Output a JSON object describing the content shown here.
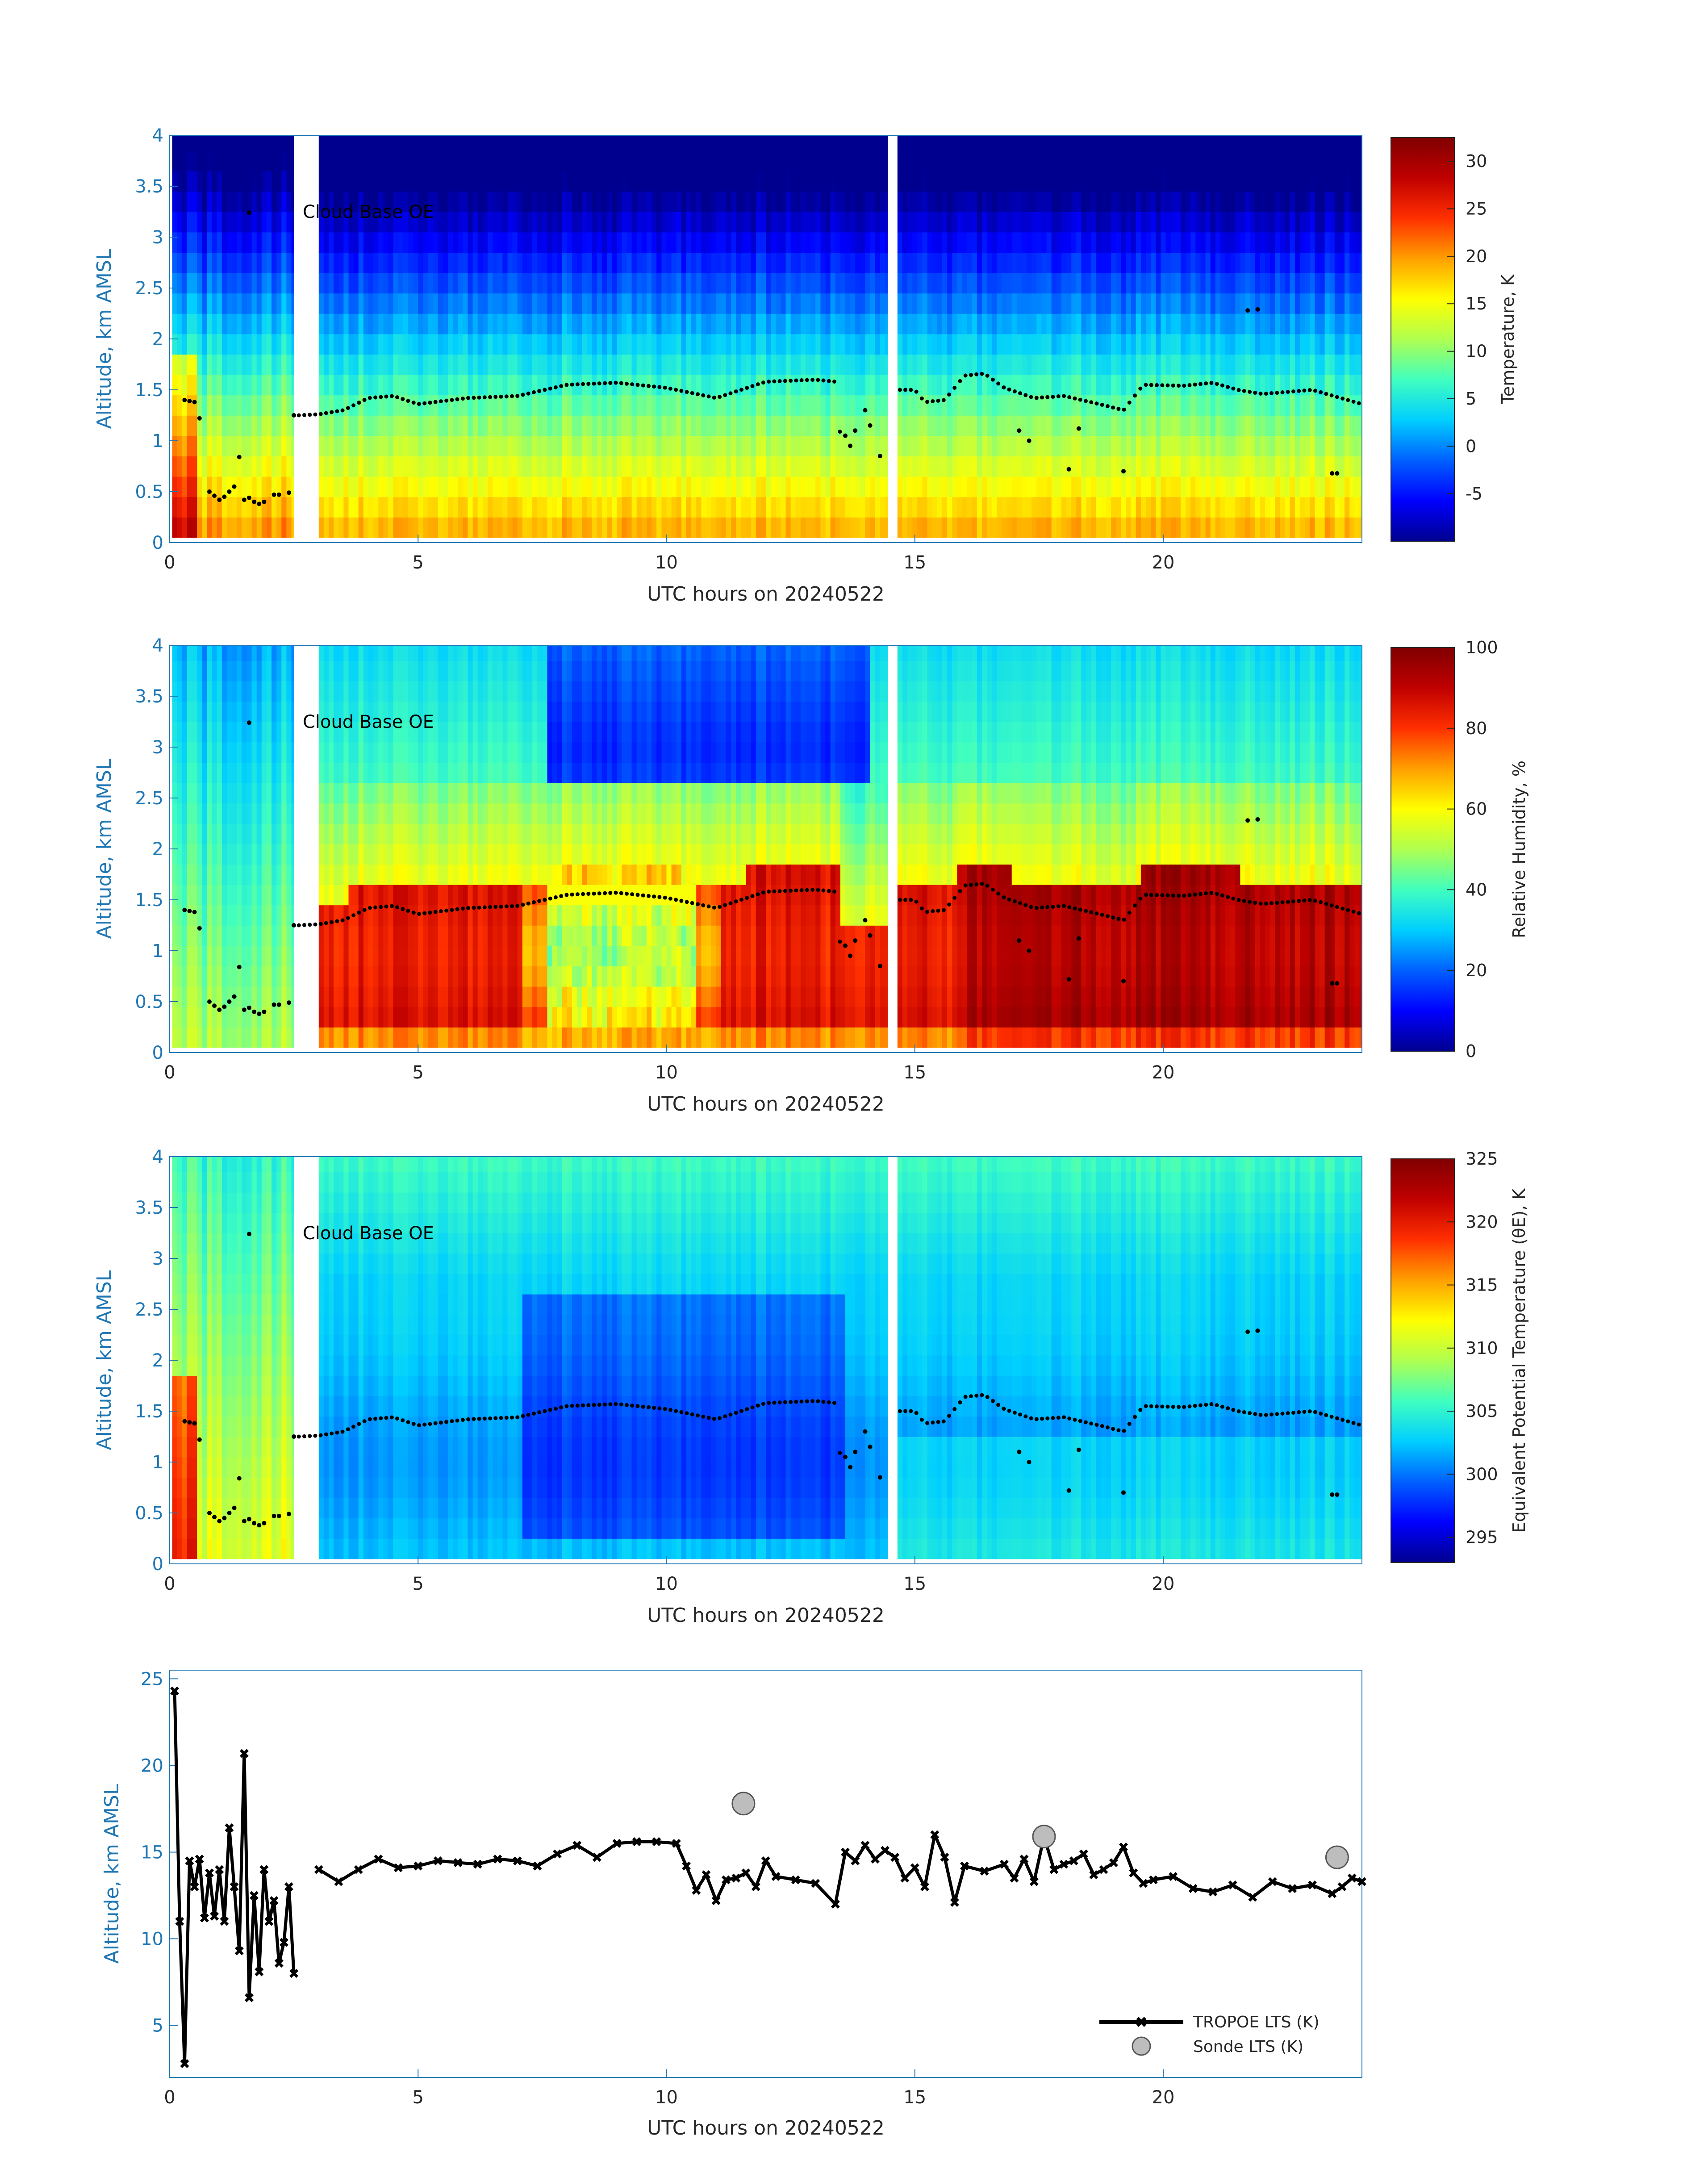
{
  "figure_date": "20240522",
  "colormap": [
    "#00008f",
    "#0000ff",
    "#0060ff",
    "#00cfff",
    "#40ffbf",
    "#afff50",
    "#ffff00",
    "#ff9f00",
    "#ff2f00",
    "#c00000",
    "#800000"
  ],
  "chart_data": [
    {
      "type": "heatmap",
      "id": "temperature",
      "xlabel": "UTC hours on 20240522",
      "ylabel": "Altitude, km AMSL",
      "xlim": [
        0,
        24
      ],
      "ylim": [
        0,
        4
      ],
      "xticks": [
        "0",
        "5",
        "10",
        "15",
        "20"
      ],
      "yticks": [
        "0",
        "0.5",
        "1",
        "1.5",
        "2",
        "2.5",
        "3",
        "3.5",
        "4"
      ],
      "colorbar_label": "Temperature, K",
      "colorbar_range": [
        -10,
        32.5
      ],
      "colorbar_ticks": [
        "-5",
        "0",
        "5",
        "10",
        "15",
        "20",
        "25",
        "30"
      ],
      "annotation": "Cloud Base OE",
      "variable": "temperature"
    },
    {
      "type": "heatmap",
      "id": "relative-humidity",
      "xlabel": "UTC hours on 20240522",
      "ylabel": "Altitude, km AMSL",
      "xlim": [
        0,
        24
      ],
      "ylim": [
        0,
        4
      ],
      "xticks": [
        "0",
        "5",
        "10",
        "15",
        "20"
      ],
      "yticks": [
        "0",
        "0.5",
        "1",
        "1.5",
        "2",
        "2.5",
        "3",
        "3.5",
        "4"
      ],
      "colorbar_label": "Relative Humidity, %",
      "colorbar_range": [
        0,
        100
      ],
      "colorbar_ticks": [
        "0",
        "20",
        "40",
        "60",
        "80",
        "100"
      ],
      "annotation": "Cloud Base OE",
      "variable": "rh"
    },
    {
      "type": "heatmap",
      "id": "theta-e",
      "xlabel": "UTC hours on 20240522",
      "ylabel": "Altitude, km AMSL",
      "xlim": [
        0,
        24
      ],
      "ylim": [
        0,
        4
      ],
      "xticks": [
        "0",
        "5",
        "10",
        "15",
        "20"
      ],
      "yticks": [
        "0",
        "0.5",
        "1",
        "1.5",
        "2",
        "2.5",
        "3",
        "3.5",
        "4"
      ],
      "colorbar_label": "Equivalent Potential Temperature (θE), K",
      "colorbar_range": [
        293,
        325
      ],
      "colorbar_ticks": [
        "295",
        "300",
        "305",
        "310",
        "315",
        "320",
        "325"
      ],
      "annotation": "Cloud Base OE",
      "variable": "thetae"
    },
    {
      "type": "line",
      "id": "lts",
      "xlabel": "UTC hours on 20240522",
      "ylabel": "Altitude, km AMSL",
      "xlim": [
        0,
        24
      ],
      "ylim": [
        2,
        25.5
      ],
      "xticks": [
        "0",
        "5",
        "10",
        "15",
        "20"
      ],
      "yticks": [
        "5",
        "10",
        "15",
        "20",
        "25"
      ],
      "series": [
        {
          "name": "TROPOE LTS (K)",
          "x": [
            0.1,
            0.2,
            0.3,
            0.4,
            0.5,
            0.6,
            0.7,
            0.8,
            0.9,
            1.0,
            1.1,
            1.2,
            1.3,
            1.4,
            1.5,
            1.6,
            1.7,
            1.8,
            1.9,
            2.0,
            2.1,
            2.2,
            2.3,
            2.4,
            2.5,
            3.0,
            3.4,
            3.8,
            4.2,
            4.6,
            5.0,
            5.4,
            5.8,
            6.2,
            6.6,
            7.0,
            7.4,
            7.8,
            8.2,
            8.6,
            9.0,
            9.4,
            9.8,
            10.2,
            10.4,
            10.6,
            10.8,
            11.0,
            11.2,
            11.4,
            11.6,
            11.8,
            12.0,
            12.2,
            12.6,
            13.0,
            13.4,
            13.6,
            13.8,
            14.0,
            14.2,
            14.4,
            14.6,
            14.8,
            15.0,
            15.2,
            15.4,
            15.6,
            15.8,
            16.0,
            16.4,
            16.8,
            17.0,
            17.2,
            17.4,
            17.6,
            17.8,
            18.0,
            18.2,
            18.4,
            18.6,
            18.8,
            19.0,
            19.2,
            19.4,
            19.6,
            19.8,
            20.2,
            20.6,
            21.0,
            21.4,
            21.8,
            22.2,
            22.6,
            23.0,
            23.4,
            23.6,
            23.8,
            24.0
          ],
          "values": [
            24.3,
            11.0,
            2.8,
            14.5,
            13.0,
            14.6,
            11.2,
            13.8,
            11.3,
            14.0,
            11.0,
            16.4,
            13.0,
            9.3,
            20.7,
            6.6,
            12.5,
            8.1,
            14.0,
            11.0,
            12.2,
            8.6,
            9.8,
            13.0,
            8.0,
            14.0,
            13.3,
            14.0,
            14.6,
            14.1,
            14.2,
            14.5,
            14.4,
            14.3,
            14.6,
            14.5,
            14.2,
            14.9,
            15.4,
            14.7,
            15.5,
            15.6,
            15.6,
            15.5,
            14.2,
            12.8,
            13.7,
            12.2,
            13.4,
            13.5,
            13.8,
            13.0,
            14.5,
            13.6,
            13.4,
            13.2,
            12.0,
            15.0,
            14.5,
            15.4,
            14.6,
            15.1,
            14.7,
            13.5,
            14.1,
            13.0,
            16.0,
            14.7,
            12.1,
            14.2,
            13.9,
            14.3,
            13.5,
            14.6,
            13.3,
            15.9,
            14.0,
            14.3,
            14.5,
            14.9,
            13.7,
            14.0,
            14.4,
            15.3,
            13.8,
            13.2,
            13.4,
            13.6,
            12.9,
            12.7,
            13.1,
            12.4,
            13.3,
            12.9,
            13.1,
            12.6,
            13.0,
            13.5,
            13.3
          ]
        },
        {
          "name": "Sonde LTS (K)",
          "x": [
            11.55,
            17.6,
            23.5
          ],
          "values": [
            17.8,
            15.9,
            14.7
          ]
        }
      ]
    }
  ]
}
